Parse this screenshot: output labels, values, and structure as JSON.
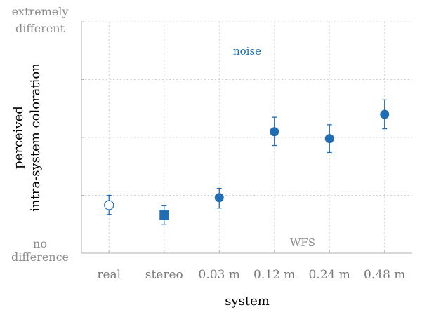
{
  "chart_data": {
    "type": "scatter",
    "title": "",
    "xlabel": "system",
    "ylabel": [
      "perceived",
      "intra-system coloration"
    ],
    "ylim": [
      0,
      4
    ],
    "y_scale_labels": {
      "top": [
        "extremely",
        "different"
      ],
      "bottom": [
        "no",
        "difference"
      ]
    },
    "grid": true,
    "categories": [
      "real",
      "stereo",
      "0.03 m",
      "0.12 m",
      "0.24 m",
      "0.48 m"
    ],
    "series": [
      {
        "values": [
          0.83,
          0.66,
          0.96,
          2.1,
          1.98,
          2.4
        ],
        "error_low": [
          0.67,
          0.5,
          0.78,
          1.86,
          1.74,
          2.15
        ],
        "error_high": [
          1.0,
          0.82,
          1.12,
          2.35,
          2.22,
          2.65
        ],
        "markers": [
          "circle-open",
          "square",
          "circle",
          "circle",
          "circle",
          "circle"
        ]
      }
    ],
    "annotations": {
      "top": "noise",
      "bottom": "WFS"
    },
    "colors": {
      "marker": "#1f6db5",
      "annotation_top": "#1f6db5",
      "annotation_bottom": "#8c8c8c",
      "axis": "#b0b0b0",
      "grid": "#d0d0d0"
    }
  }
}
